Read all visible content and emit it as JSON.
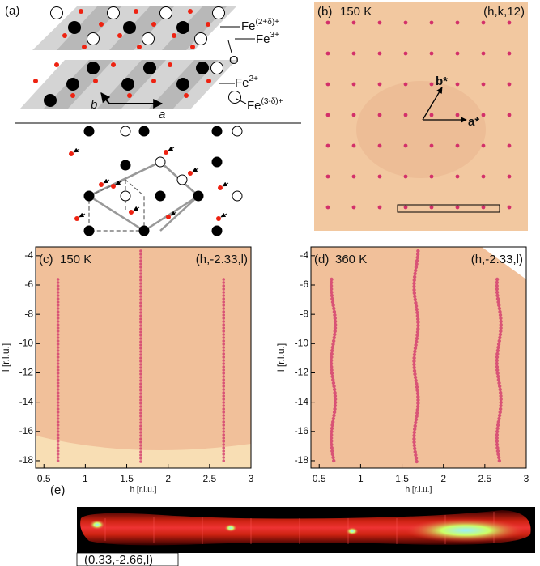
{
  "panel_a": {
    "label": "(a)",
    "atoms": [
      {
        "base": "Fe",
        "sup": "(2+δ)+"
      },
      {
        "base": "Fe",
        "sup": "3+"
      },
      {
        "base": "O",
        "sup": ""
      },
      {
        "base": "Fe",
        "sup": "2+"
      },
      {
        "base": "Fe",
        "sup": "(3-δ)+"
      }
    ],
    "lattice": [
      "b",
      "a"
    ]
  },
  "panel_b": {
    "label": "(b)",
    "temperature": "150 K",
    "index": "(h,k,12)",
    "vectors": [
      "b*",
      "a*"
    ]
  },
  "panel_c": {
    "label": "(c)",
    "temperature": "150 K",
    "index": "(h,-2.33,l)",
    "xlabel": "h [r.l.u.]",
    "ylabel": "l [r.l.u.]",
    "xlim": [
      0.4,
      3
    ],
    "xticks": [
      0.5,
      1,
      1.5,
      2,
      2.5,
      3
    ],
    "ylim": [
      -18.5,
      -3.4
    ],
    "yticks": [
      -4,
      -6,
      -8,
      -10,
      -12,
      -14,
      -16,
      -18
    ]
  },
  "panel_d": {
    "label": "(d)",
    "temperature": "360 K",
    "index": "(h,-2.33,l)",
    "xlabel": "h [r.l.u.]",
    "ylabel": "l [r.l.u.]",
    "xlim": [
      0.4,
      3
    ],
    "xticks": [
      0.5,
      1,
      1.5,
      2,
      2.5,
      3
    ],
    "ylim": [
      -18.5,
      -3.4
    ],
    "yticks": [
      -4,
      -6,
      -8,
      -10,
      -12,
      -14,
      -16,
      -18
    ]
  },
  "panel_e": {
    "label": "(e)",
    "caption": "(0.33,-2.66,l)"
  }
}
